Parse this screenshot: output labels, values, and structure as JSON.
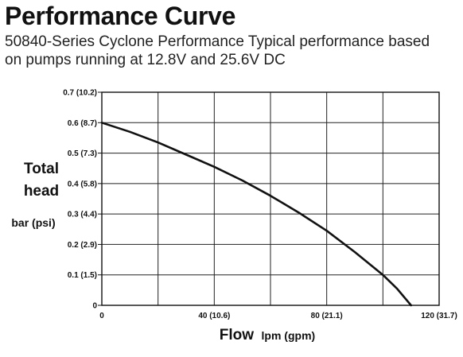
{
  "header": {
    "title": "Performance Curve",
    "subtitle": "50840-Series Cyclone Performance Typical performance based on pumps running at 12.8V and 25.6V DC"
  },
  "chart_data": {
    "type": "line",
    "title": "Performance Curve",
    "subtitle": "50840-Series Cyclone Performance Typical performance based on pumps running at 12.8V and 25.6V DC",
    "xlabel": "Flow",
    "xlabel_unit": "lpm (gpm)",
    "ylabel_lines": [
      "Total",
      "head"
    ],
    "ylabel_unit": "bar (psi)",
    "xlim": [
      0,
      120
    ],
    "ylim": [
      0,
      0.7
    ],
    "grid": true,
    "x_ticks": [
      {
        "value": 0,
        "label": "0"
      },
      {
        "value": 40,
        "label": "40 (10.6)"
      },
      {
        "value": 80,
        "label": "80 (21.1)"
      },
      {
        "value": 120,
        "label": "120 (31.7)"
      }
    ],
    "x_gridlines": [
      0,
      20,
      40,
      60,
      80,
      100,
      120
    ],
    "y_ticks": [
      {
        "value": 0,
        "label": "0"
      },
      {
        "value": 0.1,
        "label": "0.1 (1.5)"
      },
      {
        "value": 0.2,
        "label": "0.2 (2.9)"
      },
      {
        "value": 0.3,
        "label": "0.3 (4.4)"
      },
      {
        "value": 0.4,
        "label": "0.4 (5.8)"
      },
      {
        "value": 0.5,
        "label": "0.5 (7.3)"
      },
      {
        "value": 0.6,
        "label": "0.6 (8.7)"
      },
      {
        "value": 0.7,
        "label": "0.7 (10.2)"
      }
    ],
    "series": [
      {
        "x": [
          0,
          10,
          20,
          30,
          40,
          50,
          60,
          70,
          80,
          90,
          100,
          105,
          110
        ],
        "y": [
          0.6,
          0.57,
          0.535,
          0.495,
          0.455,
          0.41,
          0.36,
          0.305,
          0.245,
          0.175,
          0.1,
          0.055,
          0.0
        ],
        "color": "#111111"
      }
    ]
  }
}
